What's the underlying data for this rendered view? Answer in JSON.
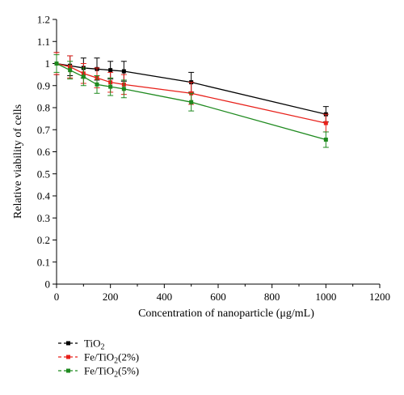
{
  "chart_data": {
    "type": "line",
    "xlabel": "Concentration of nanoparticle (μg/mL)",
    "ylabel": "Relative viability of cells",
    "xlim": [
      0,
      1200
    ],
    "ylim": [
      0,
      1.2
    ],
    "x_ticks": [
      0,
      200,
      400,
      600,
      800,
      1000,
      1200
    ],
    "y_ticks": [
      0,
      0.1,
      0.2,
      0.3,
      0.4,
      0.5,
      0.6,
      0.7,
      0.8,
      0.9,
      1,
      1.1,
      1.2
    ],
    "x": [
      0,
      50,
      100,
      150,
      200,
      250,
      500,
      1000
    ],
    "series": [
      {
        "name": "TiO2",
        "color": "#000000",
        "values": [
          1.0,
          0.99,
          0.98,
          0.975,
          0.97,
          0.965,
          0.915,
          0.77
        ],
        "errors": [
          0.05,
          0.045,
          0.045,
          0.05,
          0.04,
          0.045,
          0.045,
          0.035
        ]
      },
      {
        "name": "Fe/TiO2(2%)",
        "color": "#e8201a",
        "values": [
          1.0,
          0.985,
          0.955,
          0.935,
          0.915,
          0.905,
          0.865,
          0.73
        ],
        "errors": [
          0.05,
          0.05,
          0.045,
          0.045,
          0.045,
          0.045,
          0.05,
          0.04
        ]
      },
      {
        "name": "Fe/TiO2(5%)",
        "color": "#1f8a1f",
        "values": [
          1.0,
          0.97,
          0.94,
          0.905,
          0.895,
          0.885,
          0.825,
          0.655
        ],
        "errors": [
          0.04,
          0.04,
          0.04,
          0.04,
          0.04,
          0.04,
          0.04,
          0.035
        ]
      }
    ],
    "legend": {
      "placement": "bottom-left",
      "entries": [
        {
          "main": "TiO",
          "sub": "2",
          "suffix": ""
        },
        {
          "main": "Fe/TiO",
          "sub": "2",
          "suffix": "(2%)"
        },
        {
          "main": "Fe/TiO",
          "sub": "2",
          "suffix": "(5%)"
        }
      ]
    }
  }
}
